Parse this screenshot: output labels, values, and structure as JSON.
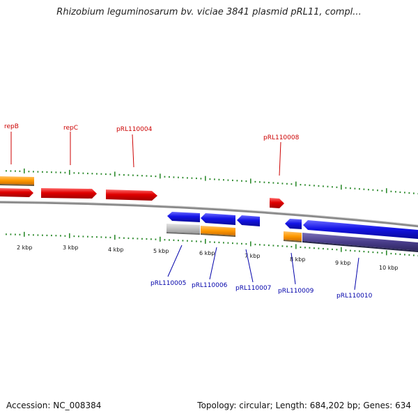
{
  "title": "Rhizobium leguminosarum bv. viciae 3841 plasmid pRL11, compl...",
  "footer": {
    "accession": "Accession: NC_008384",
    "summary": "Topology: circular; Length: 684,202 bp; Genes: 634"
  },
  "scale_labels": [
    "2 kbp",
    "3 kbp",
    "4 kbp",
    "5 kbp",
    "6 kbp",
    "7 kbp",
    "8 kbp",
    "9 kbp",
    "10 kbp"
  ],
  "gene_labels_forward": [
    "repB",
    "repC",
    "pRL110004",
    "pRL110008"
  ],
  "gene_labels_reverse": [
    "pRL110005",
    "pRL110006",
    "pRL110007",
    "pRL110009",
    "pRL110010"
  ],
  "colors": {
    "forward_cds": "#e00000",
    "reverse_cds": "#1010e0",
    "forward_label": "#cc0000",
    "reverse_label": "#0000aa",
    "orange_feature": "#ff9900",
    "grey_feature": "#bbbbbb",
    "purple_feature": "#4a3e8c",
    "ticks": "#2e8b2e",
    "backbone": "#888888"
  }
}
